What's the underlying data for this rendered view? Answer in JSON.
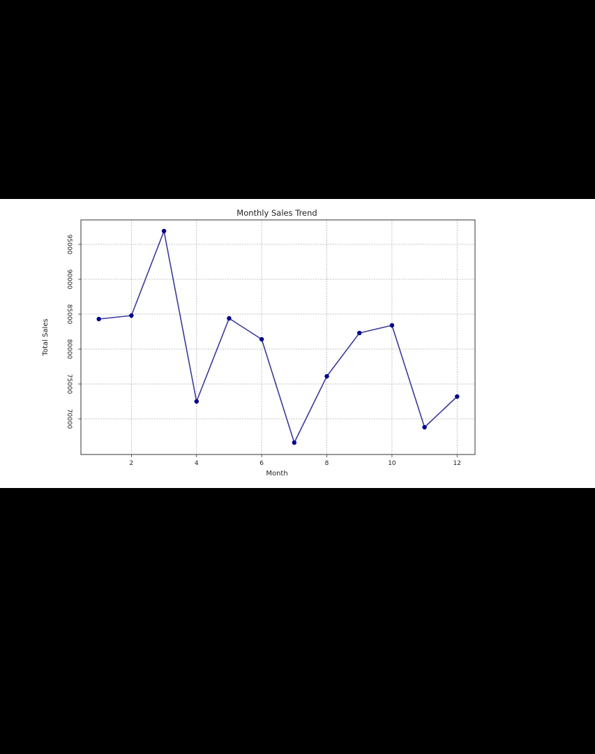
{
  "chart_data": {
    "type": "line",
    "title": "Monthly Sales Trend",
    "xlabel": "Month",
    "ylabel": "Total Sales",
    "x": [
      1,
      2,
      3,
      4,
      5,
      6,
      7,
      8,
      9,
      10,
      11,
      12
    ],
    "series": [
      {
        "values": [
          84300,
          84800,
          96900,
          72500,
          84400,
          81400,
          66600,
          76100,
          82300,
          83400,
          68800,
          73200
        ],
        "color": "#00008b",
        "marker": "circle"
      }
    ],
    "xlim": [
      0.45,
      12.55
    ],
    "ylim": [
      64900,
      98500
    ],
    "xticks": [
      2,
      4,
      6,
      8,
      10,
      12
    ],
    "yticks": [
      70000,
      75000,
      80000,
      85000,
      90000,
      95000
    ],
    "grid": true,
    "legend": "none"
  }
}
